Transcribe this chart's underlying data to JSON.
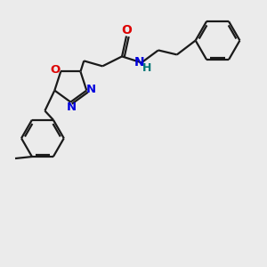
{
  "background_color": "#ebebeb",
  "bond_color": "#1a1a1a",
  "N_color": "#0000dd",
  "O_color": "#dd0000",
  "NH_color": "#007777",
  "label_fontsize": 9.5,
  "lw": 1.6,
  "fig_w": 3.0,
  "fig_h": 3.0,
  "xlim": [
    -0.5,
    5.5
  ],
  "ylim": [
    -3.2,
    2.8
  ]
}
